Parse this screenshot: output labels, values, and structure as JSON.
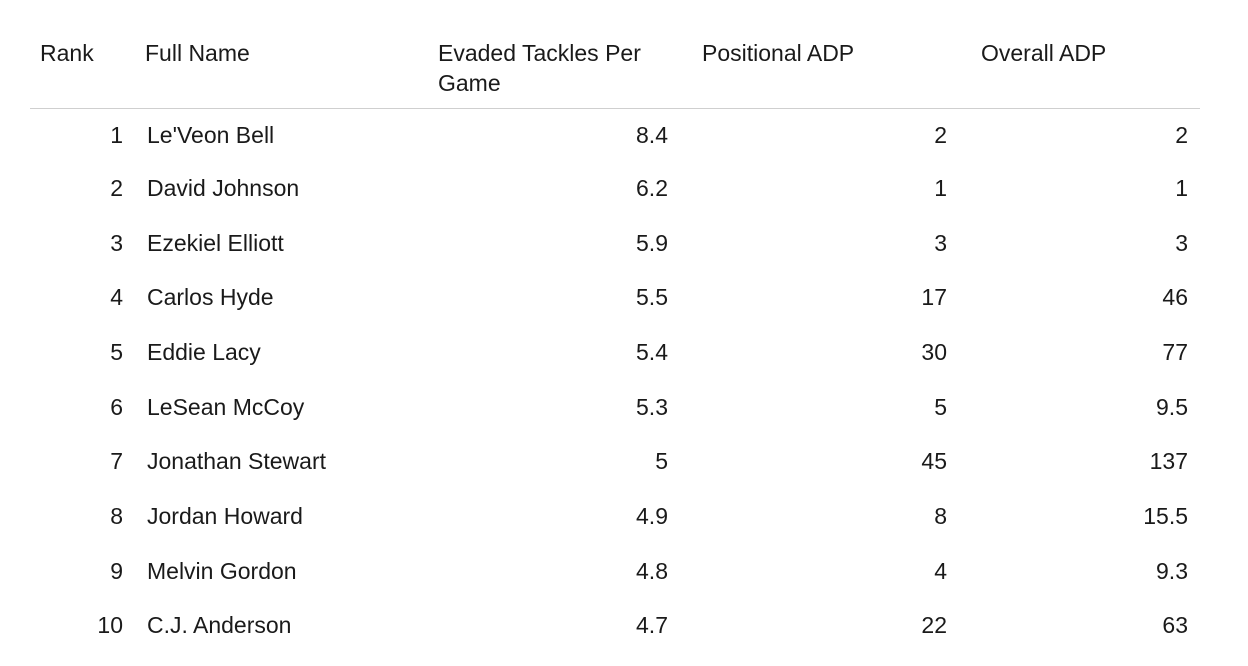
{
  "table": {
    "headers": {
      "rank": "Rank",
      "full_name": "Full Name",
      "evaded": "Evaded Tackles Per Game",
      "positional_adp": "Positional ADP",
      "overall_adp": "Overall ADP"
    },
    "rows": [
      {
        "rank": "1",
        "name": "Le'Veon Bell",
        "evaded": "8.4",
        "pos_adp": "2",
        "overall_adp": "2"
      },
      {
        "rank": "2",
        "name": "David Johnson",
        "evaded": "6.2",
        "pos_adp": "1",
        "overall_adp": "1"
      },
      {
        "rank": "3",
        "name": "Ezekiel Elliott",
        "evaded": "5.9",
        "pos_adp": "3",
        "overall_adp": "3"
      },
      {
        "rank": "4",
        "name": "Carlos Hyde",
        "evaded": "5.5",
        "pos_adp": "17",
        "overall_adp": "46"
      },
      {
        "rank": "5",
        "name": "Eddie Lacy",
        "evaded": "5.4",
        "pos_adp": "30",
        "overall_adp": "77"
      },
      {
        "rank": "6",
        "name": "LeSean McCoy",
        "evaded": "5.3",
        "pos_adp": "5",
        "overall_adp": "9.5"
      },
      {
        "rank": "7",
        "name": "Jonathan Stewart",
        "evaded": "5",
        "pos_adp": "45",
        "overall_adp": "137"
      },
      {
        "rank": "8",
        "name": "Jordan Howard",
        "evaded": "4.9",
        "pos_adp": "8",
        "overall_adp": "15.5"
      },
      {
        "rank": "9",
        "name": "Melvin Gordon",
        "evaded": "4.8",
        "pos_adp": "4",
        "overall_adp": "9.3"
      },
      {
        "rank": "10",
        "name": "C.J. Anderson",
        "evaded": "4.7",
        "pos_adp": "22",
        "overall_adp": "63"
      }
    ]
  }
}
